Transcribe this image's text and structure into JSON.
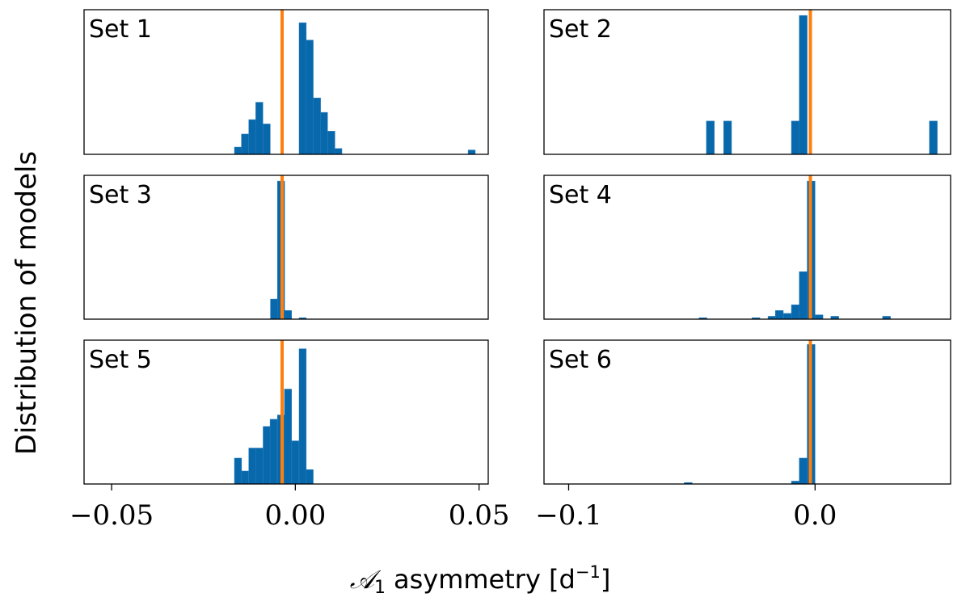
{
  "figure": {
    "ylabel": "Distribution of models",
    "xlabel_symbol": "𝒜",
    "xlabel_sub": "1",
    "xlabel_text": "asymmetry [d",
    "xlabel_sup": "−1",
    "xlabel_close": "]"
  },
  "colors": {
    "bar": "#0868ac",
    "bar_edge": "#2b7bba",
    "marker_line": "#ff7f0e",
    "axes": "#000000"
  },
  "chart_data": [
    {
      "type": "bar",
      "name": "set-1",
      "label": "Set 1",
      "column": "left",
      "row": 0,
      "xlim": [
        -0.0575,
        0.0525
      ],
      "ylim": [
        0,
        1
      ],
      "bin_width": 0.00195,
      "bins": [
        {
          "x": -0.0156,
          "h": 0.05
        },
        {
          "x": -0.0137,
          "h": 0.14
        },
        {
          "x": -0.0117,
          "h": 0.24
        },
        {
          "x": -0.0098,
          "h": 0.36
        },
        {
          "x": -0.0078,
          "h": 0.21
        },
        {
          "x": 0.002,
          "h": 0.91
        },
        {
          "x": 0.0039,
          "h": 0.79
        },
        {
          "x": 0.0059,
          "h": 0.39
        },
        {
          "x": 0.0078,
          "h": 0.29
        },
        {
          "x": 0.0098,
          "h": 0.16
        },
        {
          "x": 0.0117,
          "h": 0.04
        },
        {
          "x": 0.048,
          "h": 0.03
        }
      ],
      "marker_x": -0.0036,
      "x_ticks": [],
      "x_tick_labels": []
    },
    {
      "type": "bar",
      "name": "set-2",
      "label": "Set 2",
      "column": "right",
      "row": 0,
      "xlim": [
        -0.11,
        0.055
      ],
      "ylim": [
        0,
        1
      ],
      "bin_width": 0.0032,
      "bins": [
        {
          "x": -0.0425,
          "h": 0.23
        },
        {
          "x": -0.0355,
          "h": 0.23
        },
        {
          "x": -0.008,
          "h": 0.23
        },
        {
          "x": -0.0048,
          "h": 0.96
        },
        {
          "x": 0.048,
          "h": 0.23
        }
      ],
      "marker_x": -0.0019,
      "x_ticks": [],
      "x_tick_labels": []
    },
    {
      "type": "bar",
      "name": "set-3",
      "label": "Set 3",
      "column": "left",
      "row": 1,
      "xlim": [
        -0.0575,
        0.0525
      ],
      "ylim": [
        0,
        1
      ],
      "bin_width": 0.00195,
      "bins": [
        {
          "x": -0.0058,
          "h": 0.14
        },
        {
          "x": -0.0039,
          "h": 0.96
        },
        {
          "x": -0.002,
          "h": 0.06
        },
        {
          "x": 0.002,
          "h": 0.01
        }
      ],
      "marker_x": -0.0036,
      "x_ticks": [],
      "x_tick_labels": []
    },
    {
      "type": "bar",
      "name": "set-4",
      "label": "Set 4",
      "column": "right",
      "row": 1,
      "xlim": [
        -0.11,
        0.055
      ],
      "ylim": [
        0,
        1
      ],
      "bin_width": 0.0032,
      "bins": [
        {
          "x": -0.0455,
          "h": 0.01
        },
        {
          "x": -0.024,
          "h": 0.01
        },
        {
          "x": -0.0175,
          "h": 0.02
        },
        {
          "x": -0.0145,
          "h": 0.06
        },
        {
          "x": -0.0112,
          "h": 0.04
        },
        {
          "x": -0.008,
          "h": 0.1
        },
        {
          "x": -0.0048,
          "h": 0.33
        },
        {
          "x": -0.0016,
          "h": 0.96
        },
        {
          "x": 0.0016,
          "h": 0.03
        },
        {
          "x": 0.008,
          "h": 0.02
        },
        {
          "x": 0.029,
          "h": 0.02
        }
      ],
      "marker_x": -0.0019,
      "x_ticks": [],
      "x_tick_labels": []
    },
    {
      "type": "bar",
      "name": "set-5",
      "label": "Set 5",
      "column": "left",
      "row": 2,
      "xlim": [
        -0.0575,
        0.0525
      ],
      "ylim": [
        0,
        1
      ],
      "bin_width": 0.00195,
      "bins": [
        {
          "x": -0.0156,
          "h": 0.18
        },
        {
          "x": -0.0137,
          "h": 0.09
        },
        {
          "x": -0.0117,
          "h": 0.25
        },
        {
          "x": -0.0098,
          "h": 0.25
        },
        {
          "x": -0.0078,
          "h": 0.4
        },
        {
          "x": -0.0059,
          "h": 0.45
        },
        {
          "x": -0.0039,
          "h": 0.48
        },
        {
          "x": -0.002,
          "h": 0.66
        },
        {
          "x": 0.0,
          "h": 0.3
        },
        {
          "x": 0.002,
          "h": 0.94
        },
        {
          "x": 0.0039,
          "h": 0.1
        }
      ],
      "marker_x": -0.0036,
      "x_ticks": [
        -0.05,
        0.0,
        0.05
      ],
      "x_tick_labels": [
        "−0.05",
        "0.00",
        "0.05"
      ]
    },
    {
      "type": "bar",
      "name": "set-6",
      "label": "Set 6",
      "column": "right",
      "row": 2,
      "xlim": [
        -0.11,
        0.055
      ],
      "ylim": [
        0,
        1
      ],
      "bin_width": 0.0032,
      "bins": [
        {
          "x": -0.0515,
          "h": 0.01
        },
        {
          "x": -0.008,
          "h": 0.02
        },
        {
          "x": -0.0048,
          "h": 0.18
        },
        {
          "x": -0.0016,
          "h": 0.97
        }
      ],
      "marker_x": -0.0019,
      "x_ticks": [
        -0.1,
        0.0
      ],
      "x_tick_labels": [
        "−0.1",
        "0.0"
      ]
    }
  ]
}
